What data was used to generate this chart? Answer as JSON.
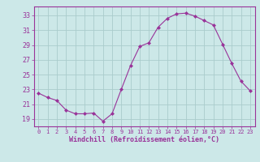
{
  "x": [
    0,
    1,
    2,
    3,
    4,
    5,
    6,
    7,
    8,
    9,
    10,
    11,
    12,
    13,
    14,
    15,
    16,
    17,
    18,
    19,
    20,
    21,
    22,
    23
  ],
  "y": [
    22.5,
    21.9,
    21.5,
    20.2,
    19.7,
    19.7,
    19.8,
    18.7,
    19.7,
    23.0,
    26.2,
    28.8,
    29.3,
    31.4,
    32.6,
    33.2,
    33.3,
    32.9,
    32.3,
    31.7,
    29.1,
    26.5,
    24.1,
    22.8
  ],
  "line_color": "#993399",
  "marker_color": "#993399",
  "bg_color": "#cce8e8",
  "grid_color": "#aacccc",
  "xlabel": "Windchill (Refroidissement éolien,°C)",
  "yticks": [
    19,
    21,
    23,
    25,
    27,
    29,
    31,
    33
  ],
  "ylim": [
    18.0,
    34.2
  ],
  "xlim": [
    -0.5,
    23.5
  ],
  "xtick_labels": [
    "0",
    "1",
    "2",
    "3",
    "4",
    "5",
    "6",
    "7",
    "8",
    "9",
    "10",
    "11",
    "12",
    "13",
    "14",
    "15",
    "16",
    "17",
    "18",
    "19",
    "20",
    "21",
    "22",
    "23"
  ]
}
